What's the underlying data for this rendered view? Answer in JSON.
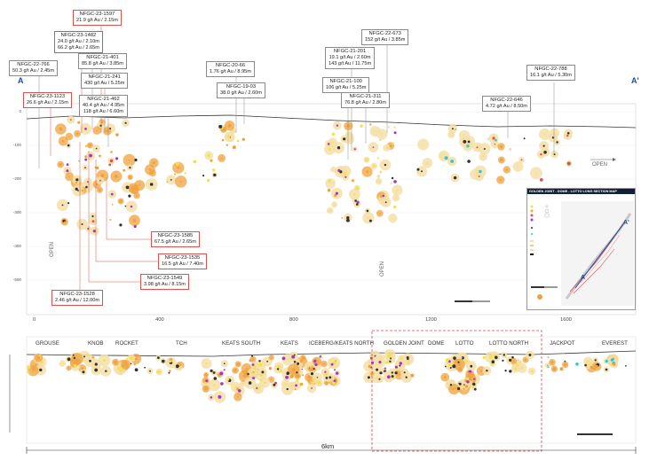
{
  "section_labels": {
    "start": "A",
    "end": "A'"
  },
  "callouts": {
    "c1597": {
      "hole": "NFGC-23-1597",
      "lines": [
        "21.9 g/t Au / 2.15m"
      ]
    },
    "c1482": {
      "hole": "NFGC-23-1482",
      "lines": [
        "24.0 g/t Au / 2.10m",
        "66.2 g/t Au / 2.65m"
      ]
    },
    "c401": {
      "hole": "NFGC-21-401",
      "lines": [
        "85.8 g/t Au / 3.85m"
      ]
    },
    "c241": {
      "hole": "NFGC-21-241",
      "lines": [
        "430 g/t Au / 5.25m"
      ]
    },
    "c766": {
      "hole": "NFGC-22-766",
      "lines": [
        "50.3 g/t Au / 2.45m"
      ]
    },
    "c1123": {
      "hole": "NFGC-23-1123",
      "lines": [
        "26.6 g/t Au / 2.15m"
      ]
    },
    "c462": {
      "hole": "NFGC-21-462",
      "lines": [
        "40.4 g/t Au / 4.95m",
        "118 g/t Au / 6.60m"
      ]
    },
    "c66": {
      "hole": "NFGC-20-66",
      "lines": [
        "1.76 g/t Au / 8.95m"
      ]
    },
    "c03": {
      "hole": "NFGC-19-03",
      "lines": [
        "38.0 g/t Au / 2.60m"
      ]
    },
    "c201": {
      "hole": "NFGC-21-201",
      "lines": [
        "19.1 g/t Au / 2.60m",
        "143 g/t Au / 11.75m"
      ]
    },
    "c673": {
      "hole": "NFGC-22-673",
      "lines": [
        "152 g/t Au / 3.85m"
      ]
    },
    "c100": {
      "hole": "NFGC-21-100",
      "lines": [
        "106 g/t Au / 5.25m"
      ]
    },
    "c311": {
      "hole": "NFGC-21-311",
      "lines": [
        "76.8 g/t Au / 2.80m"
      ]
    },
    "c646": {
      "hole": "NFGC-22-646",
      "lines": [
        "4.72 g/t Au / 8.50m"
      ]
    },
    "c788": {
      "hole": "NFGC-22-788",
      "lines": [
        "16.1 g/t Au / 5.30m"
      ]
    },
    "c1585": {
      "hole": "NFGC-23-1585",
      "lines": [
        "67.5 g/t Au / 2.65m"
      ]
    },
    "c1535": {
      "hole": "NFGC-23-1535",
      "lines": [
        "16.5 g/t Au / 7.40m"
      ]
    },
    "c1549": {
      "hole": "NFGC-23-1549",
      "lines": [
        "3.98 g/t Au / 8.15m"
      ]
    },
    "c1528": {
      "hole": "NFGC-23-1528",
      "lines": [
        "2.46 g/t Au / 12.00m"
      ]
    }
  },
  "depth_ticks": [
    "0",
    "-100",
    "-200",
    "-300",
    "-400",
    "-500"
  ],
  "distance_ticks": [
    "0",
    "400",
    "800",
    "1200",
    "1600"
  ],
  "open_labels": {
    "left": "OPEN",
    "mid": "OPEN",
    "right": "OPEN"
  },
  "legend": {
    "title": "GOLDEN JOINT - DOME - LOTTO LONG SECTION MAP"
  },
  "deposits": [
    "GROUSE",
    "KNOB",
    "ROCKET",
    "TCH",
    "KEATS SOUTH",
    "KEATS",
    "ICEBERG/KEATS NORTH",
    "GOLDEN JOINT",
    "DOME",
    "LOTTO",
    "LOTTO NORTH",
    "JACKPOT",
    "EVEREST"
  ],
  "scale_label": "6km",
  "colors": {
    "orange": "#f0a23c",
    "yellow": "#f2e24a",
    "purple": "#a23cb6",
    "red": "#d9534f",
    "blue": "#1a4fa0",
    "halo": "#f5dfa8",
    "cyan": "#34c6cf"
  }
}
